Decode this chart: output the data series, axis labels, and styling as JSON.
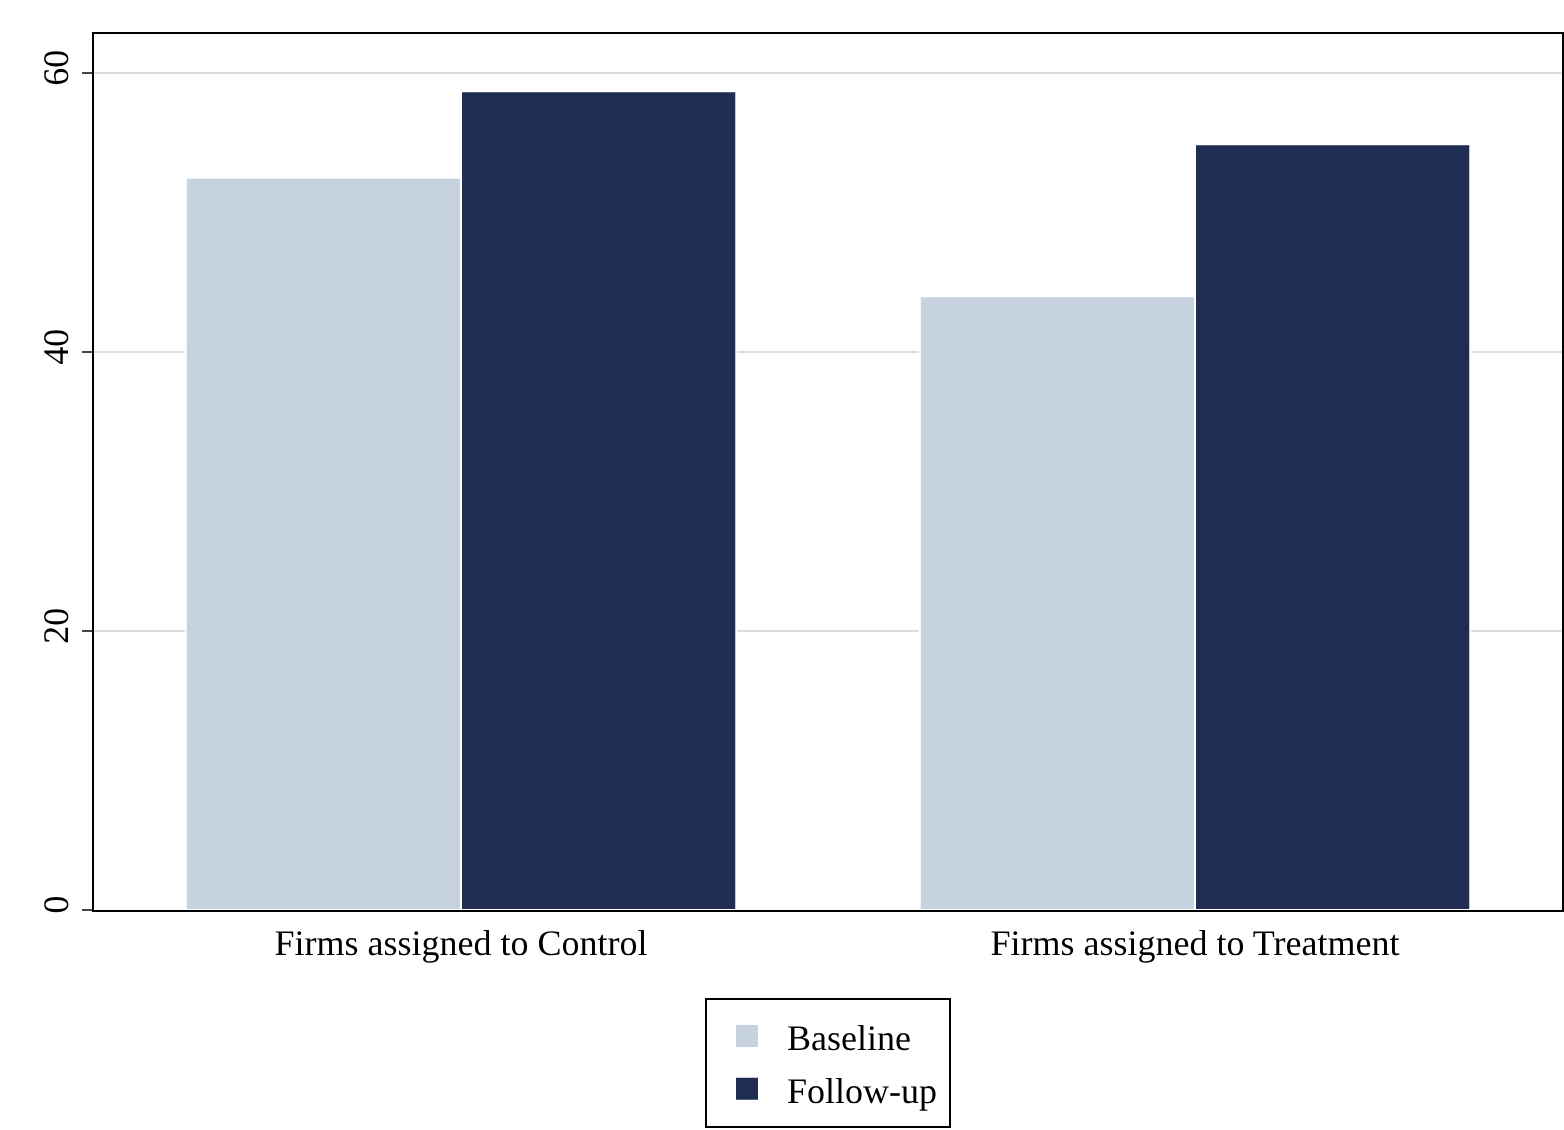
{
  "chart_data": {
    "type": "bar",
    "categories": [
      "Firms assigned to Control",
      "Firms assigned to Treatment"
    ],
    "series": [
      {
        "name": "Baseline",
        "color": "#c6d3df",
        "values": [
          52.5,
          44.0
        ]
      },
      {
        "name": "Follow-up",
        "color": "#1f2d54",
        "values": [
          58.7,
          54.9
        ]
      }
    ],
    "ylim": [
      0,
      62.8
    ],
    "yticks": [
      0,
      20,
      40,
      60
    ],
    "grid": "y",
    "legend": "bottom"
  }
}
